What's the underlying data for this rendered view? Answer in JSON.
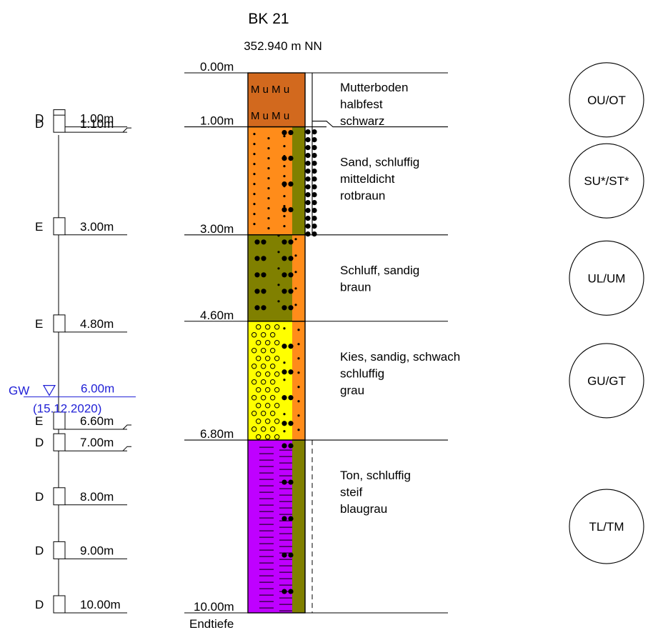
{
  "header": {
    "title": "BK 21",
    "elevation": "352.940 m NN"
  },
  "layers": [
    {
      "top_label": "0.00m",
      "top_m": 0.0,
      "bottom_m": 1.0,
      "color": "#d2691e",
      "pattern": "mu",
      "pattern_text": "M u M u",
      "description": [
        "Mutterboden",
        "halbfest",
        "schwarz"
      ],
      "soil_group": "OU/OT"
    },
    {
      "top_label": "1.00m",
      "top_m": 1.0,
      "bottom_m": 3.0,
      "color": "#ff8c1a",
      "pattern": "sand",
      "description": [
        "Sand, schluffig",
        "mitteldicht",
        "rotbraun"
      ],
      "soil_group": "SU*/ST*"
    },
    {
      "top_label": "3.00m",
      "top_m": 3.0,
      "bottom_m": 4.6,
      "color": "#808000",
      "pattern": "silt",
      "description": [
        "Schluff, sandig",
        "braun"
      ],
      "soil_group": "UL/UM"
    },
    {
      "top_label": "4.60m",
      "top_m": 4.6,
      "bottom_m": 6.8,
      "color": "#ffff00",
      "pattern": "gravel",
      "description": [
        "Kies, sandig, schwach",
        "schluffig",
        "grau"
      ],
      "soil_group": "GU/GT"
    },
    {
      "top_label": "6.80m",
      "top_m": 6.8,
      "bottom_m": 10.0,
      "color": "#bf00ff",
      "pattern": "clay",
      "description": [
        "Ton, schluffig",
        "steif",
        "blaugrau"
      ],
      "soil_group": "TL/TM"
    }
  ],
  "base": {
    "depth_label": "10.00m",
    "depth_m": 10.0,
    "note": "Endtiefe"
  },
  "samples": [
    {
      "type": "D",
      "depth_label": "1.00m",
      "depth_m": 1.0,
      "tick": false
    },
    {
      "type": "D",
      "depth_label": "1.10m",
      "depth_m": 1.1,
      "tick": true
    },
    {
      "type": "E",
      "depth_label": "3.00m",
      "depth_m": 3.0,
      "tick": false
    },
    {
      "type": "E",
      "depth_label": "4.80m",
      "depth_m": 4.8,
      "tick": false
    },
    {
      "type": "E",
      "depth_label": "6.60m",
      "depth_m": 6.6,
      "tick": true
    },
    {
      "type": "D",
      "depth_label": "7.00m",
      "depth_m": 7.0,
      "tick": true
    },
    {
      "type": "D",
      "depth_label": "8.00m",
      "depth_m": 8.0,
      "tick": false
    },
    {
      "type": "D",
      "depth_label": "9.00m",
      "depth_m": 9.0,
      "tick": false
    },
    {
      "type": "D",
      "depth_label": "10.00m",
      "depth_m": 10.0,
      "tick": false
    }
  ],
  "groundwater": {
    "label": "GW",
    "depth_label": "6.00m",
    "depth_m": 6.0,
    "date": "(15.12.2020)",
    "color": "#1f1fd6"
  },
  "colors": {
    "line": "#000000",
    "strip_green": "#808000",
    "strip_orange": "#ff8c1a"
  }
}
